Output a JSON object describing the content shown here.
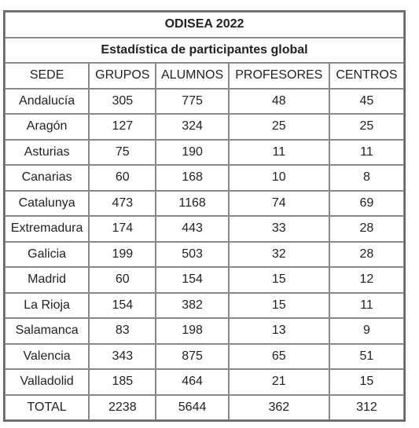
{
  "table": {
    "title": "ODISEA 2022",
    "subtitle": "Estadística de participantes global",
    "header": [
      "SEDE",
      "GRUPOS",
      "ALUMNOS",
      "PROFESORES",
      "CENTROS"
    ],
    "rows": [
      [
        "Andalucía",
        305,
        775,
        48,
        45
      ],
      [
        "Aragón",
        127,
        324,
        25,
        25
      ],
      [
        "Asturias",
        75,
        190,
        11,
        11
      ],
      [
        "Canarias",
        60,
        168,
        10,
        8
      ],
      [
        "Catalunya",
        473,
        1168,
        74,
        69
      ],
      [
        "Extremadura",
        174,
        443,
        33,
        28
      ],
      [
        "Galicia",
        199,
        503,
        32,
        28
      ],
      [
        "Madrid",
        60,
        154,
        15,
        12
      ],
      [
        "La Rioja",
        154,
        382,
        15,
        11
      ],
      [
        "Salamanca",
        83,
        198,
        13,
        9
      ],
      [
        "Valencia",
        343,
        875,
        65,
        51
      ],
      [
        "Valladolid",
        185,
        464,
        21,
        15
      ],
      [
        "TOTAL",
        2238,
        5644,
        362,
        312
      ]
    ]
  }
}
